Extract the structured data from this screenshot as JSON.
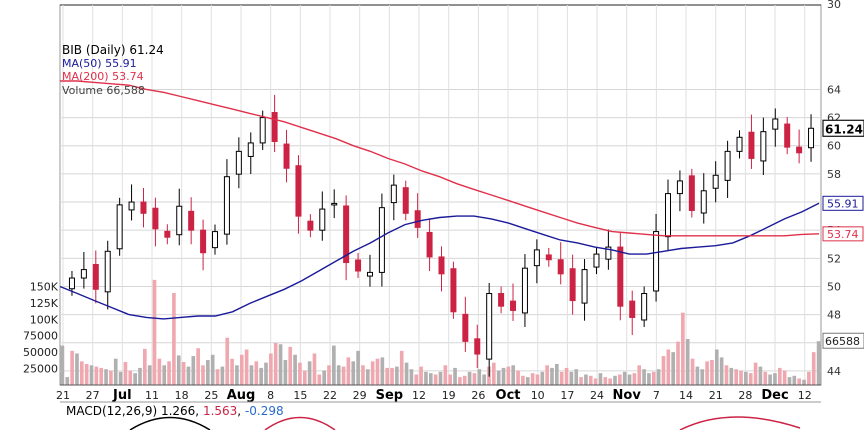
{
  "chart_data": {
    "type": "candlestick",
    "ticker_legend": "BIB (Daily) 61.24",
    "last_price": "61.24",
    "ylim": [
      43,
      70
    ],
    "y_ticks": [
      "44",
      "46",
      "48",
      "50",
      "52",
      "54",
      "56",
      "58",
      "60",
      "62",
      "64"
    ],
    "y_ticks_top": [
      "30"
    ],
    "volume_ticks": [
      "150K",
      "125K",
      "100K",
      "75000",
      "50000",
      "25000"
    ],
    "x_labels": [
      "21",
      "27",
      "Jul",
      "11",
      "18",
      "25",
      "Aug",
      "8",
      "15",
      "22",
      "29",
      "Sep",
      "12",
      "19",
      "26",
      "Oct",
      "10",
      "17",
      "24",
      "Nov",
      "7",
      "14",
      "21",
      "28",
      "Dec",
      "12"
    ],
    "bold_x_labels": [
      "Jul",
      "Aug",
      "Sep",
      "Oct",
      "Nov",
      "Dec"
    ],
    "series": [
      {
        "name": "MA(50) 55.91",
        "color": "#1a1a9a",
        "last": "55.91",
        "values": [
          50.0,
          49.5,
          49.0,
          48.5,
          48.0,
          47.8,
          47.7,
          47.8,
          47.9,
          47.9,
          48.2,
          48.8,
          49.3,
          49.8,
          50.4,
          51.1,
          51.8,
          52.5,
          53.1,
          53.8,
          54.4,
          54.7,
          54.9,
          55.0,
          55.0,
          54.8,
          54.5,
          54.1,
          53.7,
          53.3,
          53.1,
          52.8,
          52.6,
          52.3,
          52.3,
          52.5,
          52.7,
          52.8,
          52.9,
          53.1,
          53.6,
          54.2,
          54.8,
          55.3,
          55.91
        ]
      },
      {
        "name": "MA(200) 53.74",
        "color": "#e0304a",
        "last": "53.74",
        "values": [
          64.6,
          64.6,
          64.5,
          64.4,
          64.3,
          64.0,
          63.8,
          63.5,
          63.2,
          62.9,
          62.6,
          62.3,
          62.0,
          61.7,
          61.3,
          60.9,
          60.5,
          60.0,
          59.6,
          59.1,
          58.7,
          58.2,
          57.8,
          57.3,
          56.9,
          56.5,
          56.1,
          55.7,
          55.3,
          54.9,
          54.5,
          54.2,
          53.9,
          53.8,
          53.7,
          53.6,
          53.6,
          53.6,
          53.6,
          53.6,
          53.6,
          53.6,
          53.6,
          53.7,
          53.74
        ]
      }
    ],
    "closes": [
      50.6,
      51.2,
      49.8,
      52.5,
      55.8,
      56.0,
      55.2,
      54.1,
      53.5,
      55.7,
      54.0,
      52.4,
      53.9,
      57.8,
      59.6,
      60.2,
      62.0,
      60.3,
      58.4,
      55.0,
      54.0,
      55.5,
      55.9,
      51.7,
      51.1,
      51.0,
      55.6,
      57.2,
      55.2,
      54.2,
      52.1,
      50.9,
      48.2,
      46.1,
      45.2,
      49.5,
      48.6,
      48.3,
      51.3,
      52.6,
      51.9,
      50.9,
      49.0,
      51.2,
      52.3,
      52.8,
      48.6,
      47.8,
      49.5,
      53.9,
      56.6,
      57.5,
      55.4,
      56.8,
      57.9,
      59.6,
      60.6,
      59.1,
      61.0,
      61.9,
      59.9,
      59.5,
      61.24
    ],
    "volume": {
      "ymax": 175000,
      "values": [
        60000,
        12000,
        52000,
        48000,
        36000,
        32000,
        30000,
        28000,
        26000,
        24000,
        22000,
        40000,
        20000,
        35000,
        22000,
        18000,
        26000,
        55000,
        30000,
        160000,
        40000,
        30000,
        36000,
        140000,
        45000,
        35000,
        28000,
        44000,
        56000,
        30000,
        38000,
        46000,
        24000,
        28000,
        72000,
        40000,
        30000,
        46000,
        54000,
        30000,
        36000,
        26000,
        34000,
        48000,
        64000,
        62000,
        38000,
        58000,
        46000,
        34000,
        22000,
        36000,
        48000,
        16000,
        22000,
        30000,
        60000,
        30000,
        28000,
        42000,
        36000,
        52000,
        30000,
        24000,
        36000,
        40000,
        42000,
        26000,
        26000,
        28000,
        52000,
        34000,
        24000,
        16000,
        28000,
        20000,
        18000,
        16000,
        20000,
        30000,
        16000,
        26000,
        12000,
        14000,
        20000,
        18000,
        24000,
        16000,
        28000,
        34000,
        22000,
        26000,
        28000,
        30000,
        22000,
        14000,
        12000,
        18000,
        16000,
        20000,
        30000,
        26000,
        32000,
        20000,
        26000,
        20000,
        24000,
        12000,
        16000,
        14000,
        10000,
        18000,
        12000,
        10000,
        14000,
        16000,
        20000,
        16000,
        18000,
        30000,
        24000,
        18000,
        20000,
        24000,
        44000,
        54000,
        50000,
        66000,
        110000,
        70000,
        40000,
        28000,
        24000,
        36000,
        38000,
        54000,
        42000,
        30000,
        26000,
        24000,
        22000,
        20000,
        18000,
        34000,
        28000,
        20000,
        16000,
        18000,
        26000,
        22000,
        12000,
        14000,
        10000,
        8000,
        20000,
        50000,
        66588
      ]
    },
    "volume_last": "66588",
    "macd_label": "MACD(12,26,9)",
    "macd_value": "1.266",
    "macd_signal": "1.563",
    "macd_hist": "-0.298",
    "colors": {
      "up": "#000000",
      "down": "#cc2244",
      "volume_up": "#b0b0b0",
      "volume_down": "#f0a8b0",
      "price_box_border": "#111111"
    }
  }
}
